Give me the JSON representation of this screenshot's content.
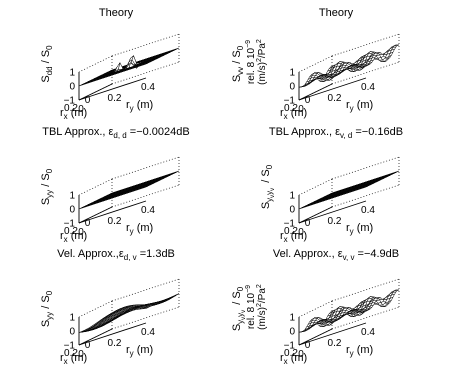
{
  "chart_data": [
    {
      "type": "surface",
      "title": "Theory",
      "zlabel_main": "S",
      "zlabel_sub": "dd",
      "zlabel_den": "S",
      "zlabel_den_sub": "0",
      "xlabel": "r",
      "xlabel_sub": "x",
      "xlabel_unit": " (m)",
      "ylabel": "r",
      "ylabel_sub": "y",
      "ylabel_unit": " (m)",
      "x_ticks": [
        "0.2",
        "0"
      ],
      "y_ticks": [
        "0",
        "0.2",
        "0.4"
      ],
      "z_ticks": [
        "1",
        "0",
        "−1"
      ],
      "zlim": [
        -1,
        1
      ],
      "surface": "spikes"
    },
    {
      "type": "surface",
      "title": "Theory",
      "zlabel_main": "S",
      "zlabel_sub": "vv",
      "zlabel_den": "S",
      "zlabel_den_sub": "0",
      "zscale_note": "rel. 8 10",
      "zscale_exp": "−9",
      "zunit": "(m/s)",
      "zunit_exp": "2",
      "zunit_tail": "/Pa",
      "zunit_tail_exp": "2",
      "xlabel": "r",
      "xlabel_sub": "x",
      "xlabel_unit": " (m)",
      "ylabel": "r",
      "ylabel_sub": "y",
      "ylabel_unit": " (m)",
      "x_ticks": [
        "0.2",
        "0"
      ],
      "y_ticks": [
        "0",
        "0.2",
        "0.4"
      ],
      "z_ticks": [
        "1",
        "0",
        "−1"
      ],
      "zlim": [
        -1,
        1
      ],
      "surface": "wave"
    },
    {
      "type": "surface",
      "title": "TBL Approx., ε",
      "title_sub": "d, d",
      "title_value": " =−0.0024dB",
      "zlabel_main": "S",
      "zlabel_sub": "yy",
      "zlabel_den": "S",
      "zlabel_den_sub": "0",
      "xlabel": "r",
      "xlabel_sub": "x",
      "xlabel_unit": " (m)",
      "ylabel": "r",
      "ylabel_sub": "y",
      "ylabel_unit": " (m)",
      "x_ticks": [
        "0.2",
        "0"
      ],
      "y_ticks": [
        "0",
        "0.2",
        "0.4"
      ],
      "z_ticks": [
        "1",
        "0",
        "−1"
      ],
      "zlim": [
        -1,
        1
      ],
      "surface": "flat"
    },
    {
      "type": "surface",
      "title": "TBL Approx., ε",
      "title_sub": "v, d",
      "title_value": " =−0.16dB",
      "zlabel_main": "S",
      "zlabel_sub": "y",
      "zlabel_sub2": "v",
      "zlabel_sub3": "y",
      "zlabel_sub4": "v",
      "zlabel_den": "S",
      "zlabel_den_sub": "0",
      "xlabel": "r",
      "xlabel_sub": "x",
      "xlabel_unit": " (m)",
      "ylabel": "r",
      "ylabel_sub": "y",
      "ylabel_unit": " (m)",
      "x_ticks": [
        "0.2",
        "0"
      ],
      "y_ticks": [
        "0",
        "0.2",
        "0.4"
      ],
      "z_ticks": [
        "1",
        "0",
        "−1"
      ],
      "zlim": [
        -1,
        1
      ],
      "surface": "flat"
    },
    {
      "type": "surface",
      "title": "Vel. Approx.,ε",
      "title_sub": "d, v",
      "title_value": " =1.3dB",
      "zlabel_main": "S",
      "zlabel_sub": "yy",
      "zlabel_den": "S",
      "zlabel_den_sub": "0",
      "xlabel": "r",
      "xlabel_sub": "x",
      "xlabel_unit": " (m)",
      "ylabel": "r",
      "ylabel_sub": "y",
      "ylabel_unit": " (m)",
      "x_ticks": [
        "0.2",
        "0"
      ],
      "y_ticks": [
        "0",
        "0.2",
        "0.4"
      ],
      "z_ticks": [
        "1",
        "0",
        "−1"
      ],
      "zlim": [
        -1,
        1
      ],
      "surface": "smooth"
    },
    {
      "type": "surface",
      "title": "Vel. Approx., ε",
      "title_sub": "v, v",
      "title_value": " =−4.9dB",
      "zlabel_main": "S",
      "zlabel_sub": "y",
      "zlabel_sub2": "v",
      "zlabel_sub3": "y",
      "zlabel_sub4": "v",
      "zlabel_den": "S",
      "zlabel_den_sub": "0",
      "zscale_note": "rel. 8 10",
      "zscale_exp": "−9",
      "zunit": "(m/s)",
      "zunit_exp": "2",
      "zunit_tail": "/Pa",
      "zunit_tail_exp": "2",
      "xlabel": "r",
      "xlabel_sub": "x",
      "xlabel_unit": " (m)",
      "ylabel": "r",
      "ylabel_sub": "y",
      "ylabel_unit": " (m)",
      "x_ticks": [
        "0.2",
        "0"
      ],
      "y_ticks": [
        "0",
        "0.2",
        "0.4"
      ],
      "z_ticks": [
        "1",
        "0",
        "−1"
      ],
      "zlim": [
        -1,
        1
      ],
      "surface": "wave"
    }
  ]
}
